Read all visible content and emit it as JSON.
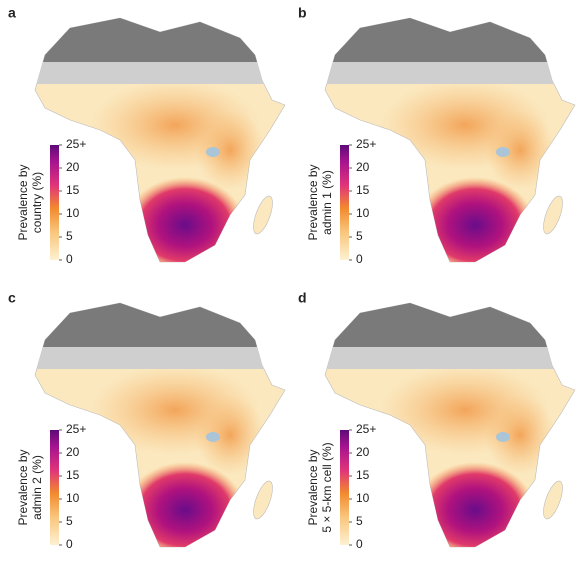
{
  "panels": [
    {
      "letter": "a",
      "legend_title": [
        "Prevalence by",
        "country (%)"
      ]
    },
    {
      "letter": "b",
      "legend_title": [
        "Prevalence by",
        "admin 1 (%)"
      ]
    },
    {
      "letter": "c",
      "legend_title": [
        "Prevalence by",
        "admin 2 (%)"
      ]
    },
    {
      "letter": "d",
      "legend_title": [
        "Prevalence by",
        "5 × 5-km cell (%)"
      ]
    }
  ],
  "colorbar": {
    "lim": [
      0,
      25
    ],
    "ticks": [
      {
        "value": 25,
        "label": "25+"
      },
      20,
      15,
      10,
      5,
      0
    ]
  }
}
